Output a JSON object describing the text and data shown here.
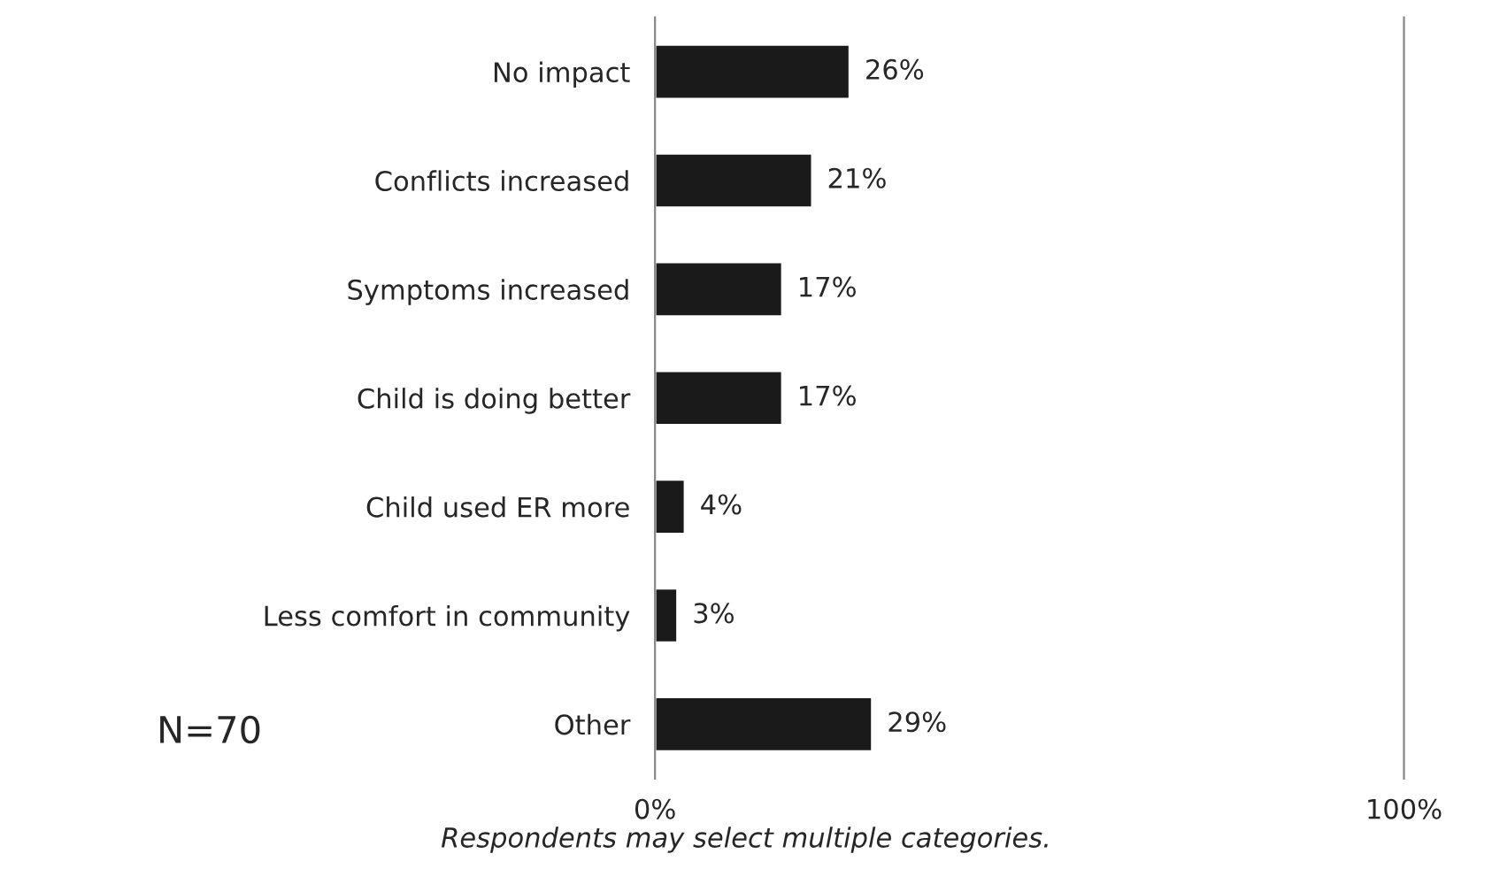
{
  "chart_data": {
    "type": "bar",
    "orientation": "horizontal",
    "categories": [
      "No impact",
      "Conflicts increased",
      "Symptoms increased",
      "Child is doing better",
      "Child used ER more",
      "Less comfort in community",
      "Other"
    ],
    "values": [
      26,
      21,
      17,
      17,
      4,
      3,
      29
    ],
    "value_labels": [
      "26%",
      "21%",
      "17%",
      "17%",
      "4%",
      "3%",
      "29%"
    ],
    "color": "#1a1a1a",
    "xlim": [
      0,
      100
    ],
    "xticks": [
      {
        "value": 0,
        "label": "0%"
      },
      {
        "value": 100,
        "label": "100%"
      }
    ],
    "grid": false,
    "legend": false,
    "annotations": [
      "N=70",
      "Respondents may select multiple categories."
    ]
  }
}
